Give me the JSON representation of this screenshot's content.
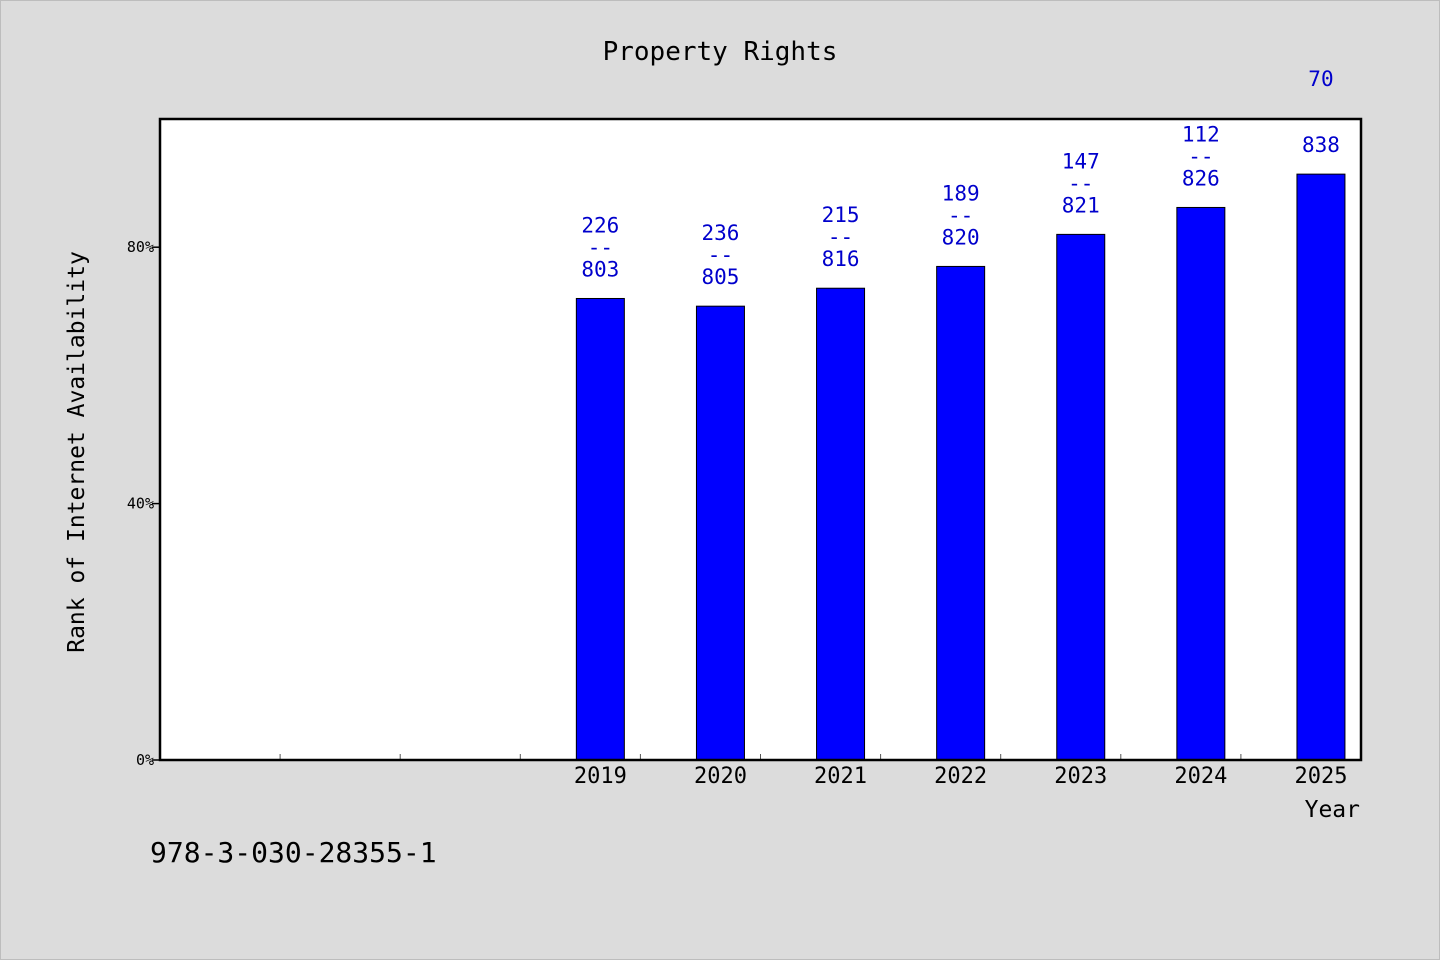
{
  "chart_data": {
    "type": "bar",
    "title": "Property Rights",
    "xlabel": "Year",
    "ylabel": "Rank of Internet Availability",
    "categories": [
      "",
      "",
      "",
      "2019",
      "2020",
      "2021",
      "2022",
      "2023",
      "2024",
      "2025"
    ],
    "series": [
      {
        "values": [
          null,
          null,
          null,
          72,
          70.8,
          73.6,
          77,
          82,
          86.2,
          91.4
        ],
        "labels": [
          null,
          null,
          null,
          [
            "226",
            "--",
            "803"
          ],
          [
            "236",
            "--",
            "805"
          ],
          [
            "215",
            "--",
            "816"
          ],
          [
            "189",
            "--",
            "820"
          ],
          [
            "147",
            "--",
            "821"
          ],
          [
            "112",
            "--",
            "826"
          ],
          [
            "70",
            "",
            "838"
          ]
        ]
      }
    ],
    "ylim": [
      0,
      100
    ],
    "yticks": [
      0,
      40,
      80
    ],
    "ytick_labels": [
      "0%",
      "40%",
      "80%"
    ],
    "bar_color": "#0000ff",
    "label_color": "#0000cc",
    "grid": false,
    "legend": "none"
  },
  "footer": {
    "text": "978-3-030-28355-1"
  },
  "colors": {
    "background": "#dcdcdc",
    "plot_background": "#ffffff"
  }
}
